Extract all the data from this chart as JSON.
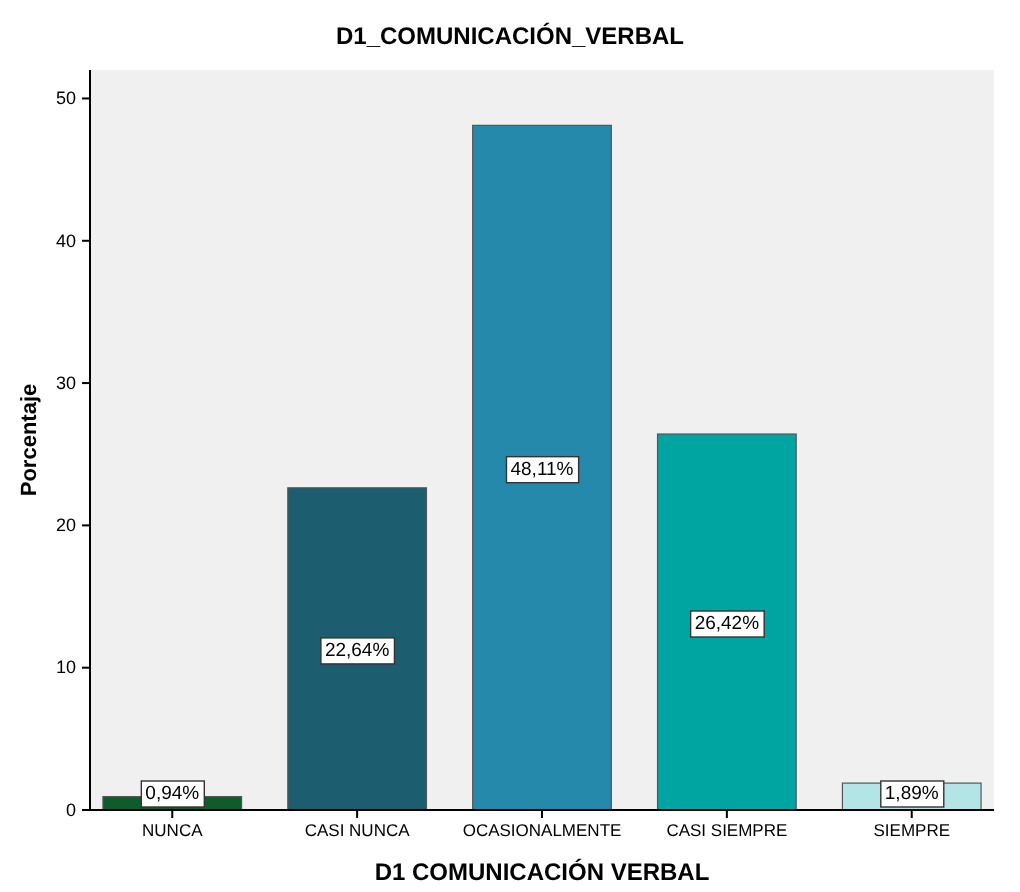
{
  "chart_data": {
    "type": "bar",
    "title": "D1_COMUNICACIÓN_VERBAL",
    "xlabel": "D1 COMUNICACIÓN VERBAL",
    "ylabel": "Porcentaje",
    "categories": [
      "NUNCA",
      "CASI NUNCA",
      "OCASIONALMENTE",
      "CASI SIEMPRE",
      "SIEMPRE"
    ],
    "values": [
      0.94,
      22.64,
      48.11,
      26.42,
      1.89
    ],
    "colors": [
      "#0e5b2c",
      "#1c5d70",
      "#2589ab",
      "#00a5a1",
      "#b4e5e6"
    ],
    "value_labels": [
      "0,94%",
      "22,64%",
      "48,11%",
      "26,42%",
      "1,89%"
    ],
    "ylim": [
      0,
      52
    ],
    "yticks": [
      0,
      10,
      20,
      30,
      40,
      50
    ]
  }
}
